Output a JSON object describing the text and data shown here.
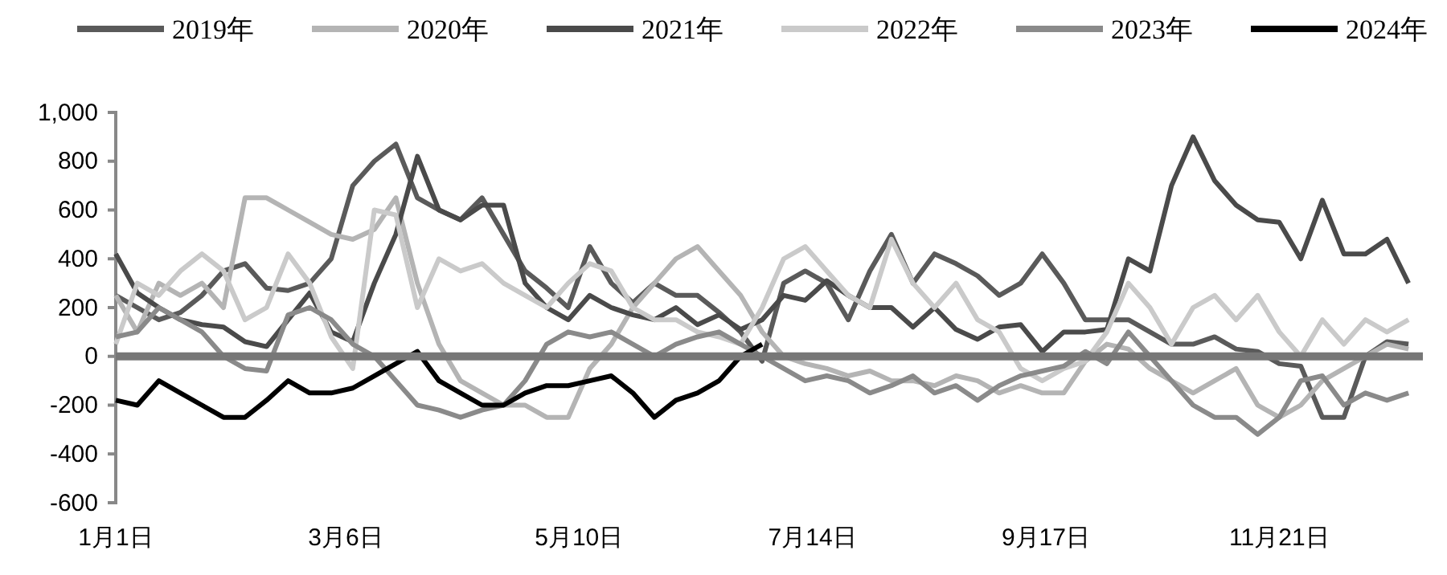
{
  "chart_data": {
    "type": "line",
    "legend": "top",
    "xlim": [
      "--01-01",
      "--12-31"
    ],
    "xticks": [
      {
        "value": "--01-01",
        "label": "1月1日"
      },
      {
        "value": "--03-06",
        "label": "3月6日"
      },
      {
        "value": "--05-10",
        "label": "5月10日"
      },
      {
        "value": "--07-14",
        "label": "7月14日"
      },
      {
        "value": "--09-17",
        "label": "9月17日"
      },
      {
        "value": "--11-21",
        "label": "11月21日"
      }
    ],
    "ylim": [
      -600,
      1000
    ],
    "yticks": [
      -600,
      -400,
      -200,
      0,
      200,
      400,
      600,
      800,
      {
        "value": 1000,
        "label": "1,000"
      }
    ],
    "x": [
      "--01-01",
      "--01-07",
      "--01-13",
      "--01-19",
      "--01-25",
      "--01-31",
      "--02-06",
      "--02-12",
      "--02-18",
      "--02-24",
      "--03-02",
      "--03-08",
      "--03-14",
      "--03-20",
      "--03-26",
      "--04-01",
      "--04-07",
      "--04-13",
      "--04-19",
      "--04-25",
      "--05-01",
      "--05-07",
      "--05-13",
      "--05-19",
      "--05-25",
      "--05-31",
      "--06-06",
      "--06-12",
      "--06-18",
      "--06-24",
      "--06-30",
      "--07-06",
      "--07-12",
      "--07-18",
      "--07-24",
      "--07-30",
      "--08-05",
      "--08-11",
      "--08-17",
      "--08-23",
      "--08-29",
      "--09-04",
      "--09-10",
      "--09-16",
      "--09-22",
      "--09-28",
      "--10-04",
      "--10-10",
      "--10-16",
      "--10-22",
      "--10-28",
      "--11-03",
      "--11-09",
      "--11-15",
      "--11-21",
      "--11-27",
      "--12-03",
      "--12-09",
      "--12-15",
      "--12-21",
      "--12-27"
    ],
    "series": [
      {
        "name": "2019年",
        "color": "#5a5a5a",
        "values": [
          250,
          200,
          150,
          180,
          250,
          350,
          380,
          280,
          270,
          300,
          400,
          700,
          800,
          870,
          650,
          600,
          560,
          650,
          500,
          350,
          280,
          200,
          450,
          300,
          220,
          300,
          250,
          250,
          180,
          100,
          -20,
          300,
          350,
          300,
          150,
          350,
          500,
          300,
          420,
          380,
          330,
          250,
          300,
          420,
          300,
          150,
          150,
          150,
          100,
          50,
          50,
          80,
          30,
          20,
          -30,
          -40,
          -250,
          -250,
          0,
          60,
          50
        ]
      },
      {
        "name": "2020年",
        "color": "#b4b4b4",
        "values": [
          250,
          100,
          300,
          250,
          300,
          200,
          650,
          650,
          600,
          550,
          500,
          480,
          520,
          650,
          300,
          50,
          -100,
          -150,
          -200,
          -200,
          -250,
          -250,
          -50,
          50,
          200,
          300,
          400,
          450,
          350,
          250,
          100,
          0,
          -30,
          -50,
          -80,
          -60,
          -100,
          -100,
          -120,
          -80,
          -100,
          -150,
          -120,
          -150,
          -150,
          -20,
          50,
          30,
          -50,
          -100,
          -150,
          -100,
          -50,
          -200,
          -250,
          -200,
          -100,
          -50,
          0,
          50,
          30
        ]
      },
      {
        "name": "2021年",
        "color": "#4a4a4a",
        "values": [
          420,
          260,
          200,
          150,
          130,
          120,
          60,
          40,
          150,
          260,
          100,
          60,
          300,
          500,
          820,
          600,
          560,
          620,
          620,
          300,
          200,
          150,
          250,
          200,
          170,
          150,
          200,
          130,
          170,
          110,
          150,
          250,
          230,
          310,
          250,
          200,
          200,
          120,
          200,
          110,
          70,
          120,
          130,
          20,
          100,
          100,
          110,
          400,
          350,
          700,
          900,
          720,
          620,
          560,
          550,
          400,
          640,
          420,
          420,
          480,
          300
        ]
      },
      {
        "name": "2022年",
        "color": "#cacaca",
        "values": [
          50,
          300,
          250,
          350,
          420,
          350,
          150,
          200,
          420,
          300,
          80,
          -50,
          600,
          580,
          200,
          400,
          350,
          380,
          300,
          250,
          200,
          300,
          380,
          350,
          200,
          150,
          150,
          100,
          80,
          50,
          200,
          400,
          450,
          350,
          250,
          200,
          480,
          300,
          200,
          300,
          150,
          100,
          -50,
          -100,
          -50,
          -20,
          100,
          300,
          200,
          50,
          200,
          250,
          150,
          250,
          100,
          0,
          150,
          50,
          150,
          100,
          150
        ]
      },
      {
        "name": "2023年",
        "color": "#8a8a8a",
        "values": [
          80,
          100,
          200,
          150,
          100,
          0,
          -50,
          -60,
          170,
          200,
          150,
          50,
          0,
          -100,
          -200,
          -220,
          -250,
          -220,
          -200,
          -100,
          50,
          100,
          80,
          100,
          50,
          0,
          50,
          80,
          100,
          50,
          0,
          -50,
          -100,
          -80,
          -100,
          -150,
          -120,
          -80,
          -150,
          -120,
          -180,
          -120,
          -80,
          -60,
          -40,
          20,
          -30,
          100,
          0,
          -100,
          -200,
          -250,
          -250,
          -320,
          -250,
          -100,
          -80,
          -200,
          -150,
          -180,
          -150
        ]
      },
      {
        "name": "2024年",
        "color": "#000000",
        "values": [
          -180,
          -200,
          -100,
          -150,
          -200,
          -250,
          -250,
          -180,
          -100,
          -150,
          -150,
          -130,
          -80,
          -30,
          20,
          -100,
          -150,
          -200,
          -200,
          -150,
          -120,
          -120,
          -100,
          -80,
          -150,
          -250,
          -180,
          -150,
          -100,
          0,
          50,
          null,
          null,
          null,
          null,
          null,
          null,
          null,
          null,
          null,
          null,
          null,
          null,
          null,
          null,
          null,
          null,
          null,
          null,
          null,
          null,
          null,
          null,
          null,
          null,
          null,
          null,
          null,
          null,
          null,
          null
        ]
      }
    ]
  }
}
